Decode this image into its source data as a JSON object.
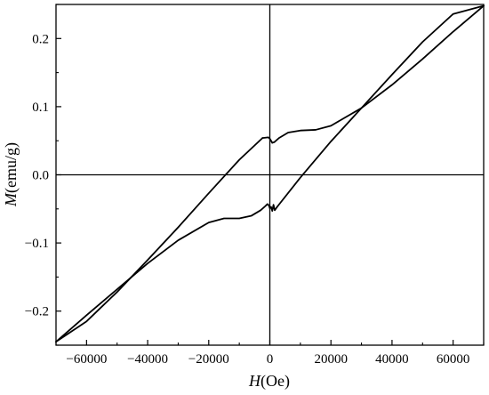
{
  "chart_data": {
    "type": "line",
    "xlabel_var": "H",
    "xlabel_unit": "(Oe)",
    "ylabel_var": "M",
    "ylabel_unit": "(emu/g)",
    "xlim": [
      -70000,
      70000
    ],
    "ylim": [
      -0.25,
      0.25
    ],
    "x_ticks": [
      -60000,
      -40000,
      -20000,
      0,
      20000,
      40000,
      60000
    ],
    "x_tick_labels": [
      "−60000",
      "−40000",
      "−20000",
      "0",
      "20000",
      "40000",
      "60000"
    ],
    "y_ticks": [
      -0.2,
      -0.1,
      0.0,
      0.1,
      0.2
    ],
    "y_tick_labels": [
      "−0.2",
      "−0.1",
      "0.0",
      "0.1",
      "0.2"
    ],
    "grid": false,
    "reference_lines": {
      "x": 0,
      "y": 0
    },
    "series": [
      {
        "x": [
          -70000,
          -60000,
          -50000,
          -40000,
          -30000,
          -20000,
          -15000,
          -10000,
          -6000,
          -3000,
          -1500,
          -800
        ],
        "y": [
          -0.245,
          -0.206,
          -0.168,
          -0.13,
          -0.096,
          -0.07,
          -0.064,
          -0.064,
          -0.06,
          -0.052,
          -0.046,
          -0.043
        ]
      },
      {
        "x": [
          -800,
          -300,
          0,
          400,
          800,
          1200,
          1600,
          2400
        ],
        "y": [
          -0.043,
          -0.045,
          -0.049,
          -0.047,
          -0.053,
          -0.044,
          -0.052,
          -0.047
        ]
      },
      {
        "x": [
          2400,
          10000,
          20000,
          30000,
          40000,
          50000,
          60000,
          70000
        ],
        "y": [
          -0.047,
          -0.004,
          0.049,
          0.098,
          0.147,
          0.195,
          0.236,
          0.248
        ]
      },
      {
        "x": [
          70000,
          60000,
          50000,
          40000,
          30000,
          20000,
          15000,
          10000,
          6000,
          3000,
          1500,
          800
        ],
        "y": [
          0.248,
          0.21,
          0.17,
          0.132,
          0.098,
          0.072,
          0.066,
          0.065,
          0.062,
          0.054,
          0.048,
          0.047
        ]
      },
      {
        "x": [
          800,
          0,
          -500,
          -2400
        ],
        "y": [
          0.047,
          0.053,
          0.055,
          0.054
        ]
      },
      {
        "x": [
          -2400,
          -10000,
          -20000,
          -30000,
          -40000,
          -50000,
          -60000,
          -70000
        ],
        "y": [
          0.054,
          0.022,
          -0.027,
          -0.077,
          -0.125,
          -0.172,
          -0.215,
          -0.245
        ]
      }
    ]
  }
}
